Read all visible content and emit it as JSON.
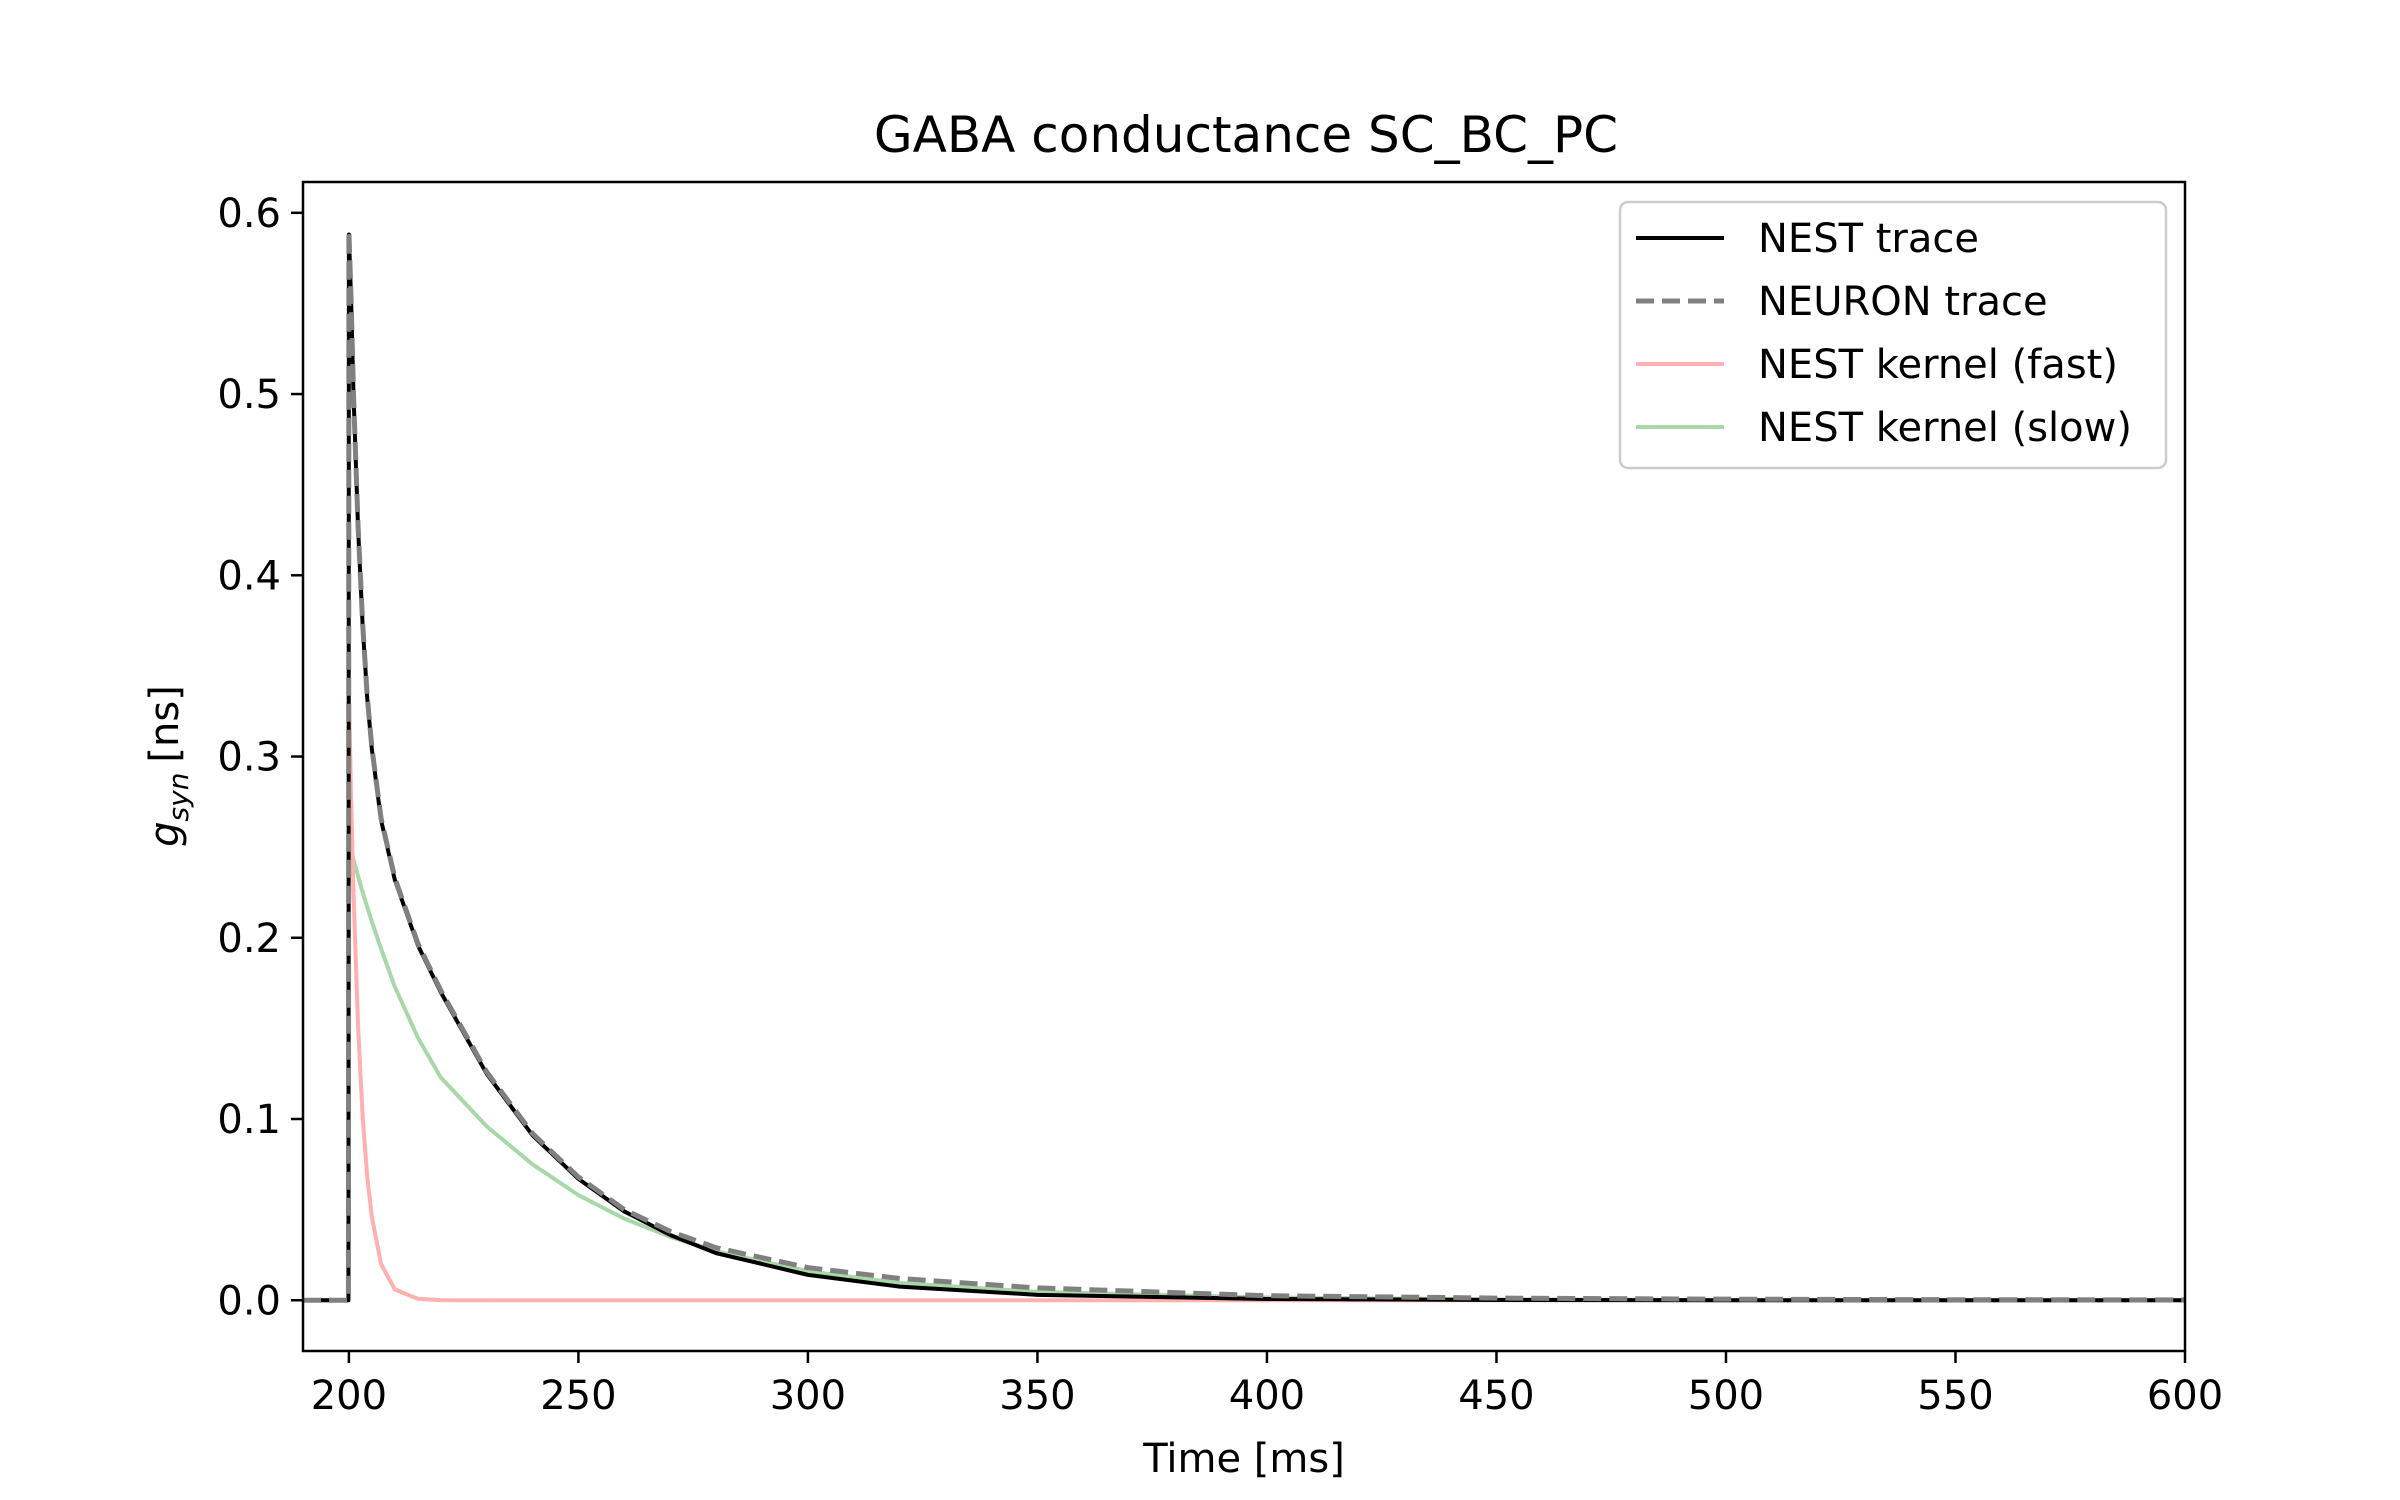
{
  "chart_data": {
    "type": "line",
    "title": "GABA conductance SC_BC_PC",
    "xlabel": "Time [ms]",
    "ylabel": {
      "symbol": "g",
      "subscript": "syn",
      "unit": "[ns]"
    },
    "xlim": [
      190,
      600
    ],
    "ylim": [
      -0.028,
      0.617
    ],
    "xticks": [
      200,
      250,
      300,
      350,
      400,
      450,
      500,
      550,
      600
    ],
    "yticks": [
      0.0,
      0.1,
      0.2,
      0.3,
      0.4,
      0.5,
      0.6
    ],
    "ytick_labels": [
      "0.0",
      "0.1",
      "0.2",
      "0.3",
      "0.4",
      "0.5",
      "0.6"
    ],
    "grid": false,
    "legend_position": "top-right",
    "x": [
      190,
      199.9,
      200,
      200.5,
      201,
      202,
      203,
      204,
      205,
      207,
      210,
      215,
      220,
      230,
      240,
      250,
      260,
      270,
      280,
      300,
      320,
      350,
      400,
      450,
      500,
      550,
      600
    ],
    "series": [
      {
        "name": "NEST trace",
        "color": "#000000",
        "style": "solid",
        "values": [
          0,
          0,
          0.588,
          0.55,
          0.5,
          0.426,
          0.372,
          0.332,
          0.304,
          0.265,
          0.232,
          0.196,
          0.17,
          0.125,
          0.091,
          0.067,
          0.049,
          0.036,
          0.026,
          0.014,
          0.0075,
          0.003,
          0.0007,
          0.00015,
          3e-05,
          0,
          0
        ]
      },
      {
        "name": "NEURON trace",
        "color": "#808080",
        "style": "dashed",
        "values": [
          0,
          0,
          0.59,
          0.55,
          0.5,
          0.427,
          0.373,
          0.333,
          0.305,
          0.266,
          0.233,
          0.197,
          0.171,
          0.126,
          0.092,
          0.068,
          0.05,
          0.038,
          0.029,
          0.018,
          0.012,
          0.0068,
          0.0025,
          0.0012,
          0.0006,
          0.0003,
          0.0002
        ]
      },
      {
        "name": "NEST kernel (fast)",
        "color": "#ffb0b0",
        "style": "solid",
        "values": [
          0,
          0,
          0.335,
          0.275,
          0.225,
          0.151,
          0.101,
          0.068,
          0.046,
          0.02,
          0.006,
          0.0008,
          0.0001,
          0,
          0,
          0,
          0,
          0,
          0,
          0,
          0,
          0,
          0,
          0,
          0,
          0,
          0
        ]
      },
      {
        "name": "NEST kernel (slow)",
        "color": "#a8d8a8",
        "style": "solid",
        "values": [
          0,
          0,
          0.253,
          0.248,
          0.243,
          0.234,
          0.225,
          0.217,
          0.209,
          0.194,
          0.173,
          0.145,
          0.123,
          0.096,
          0.075,
          0.058,
          0.045,
          0.035,
          0.027,
          0.016,
          0.0095,
          0.0046,
          0.0015,
          0.0005,
          0.0001,
          0,
          0
        ]
      }
    ]
  }
}
